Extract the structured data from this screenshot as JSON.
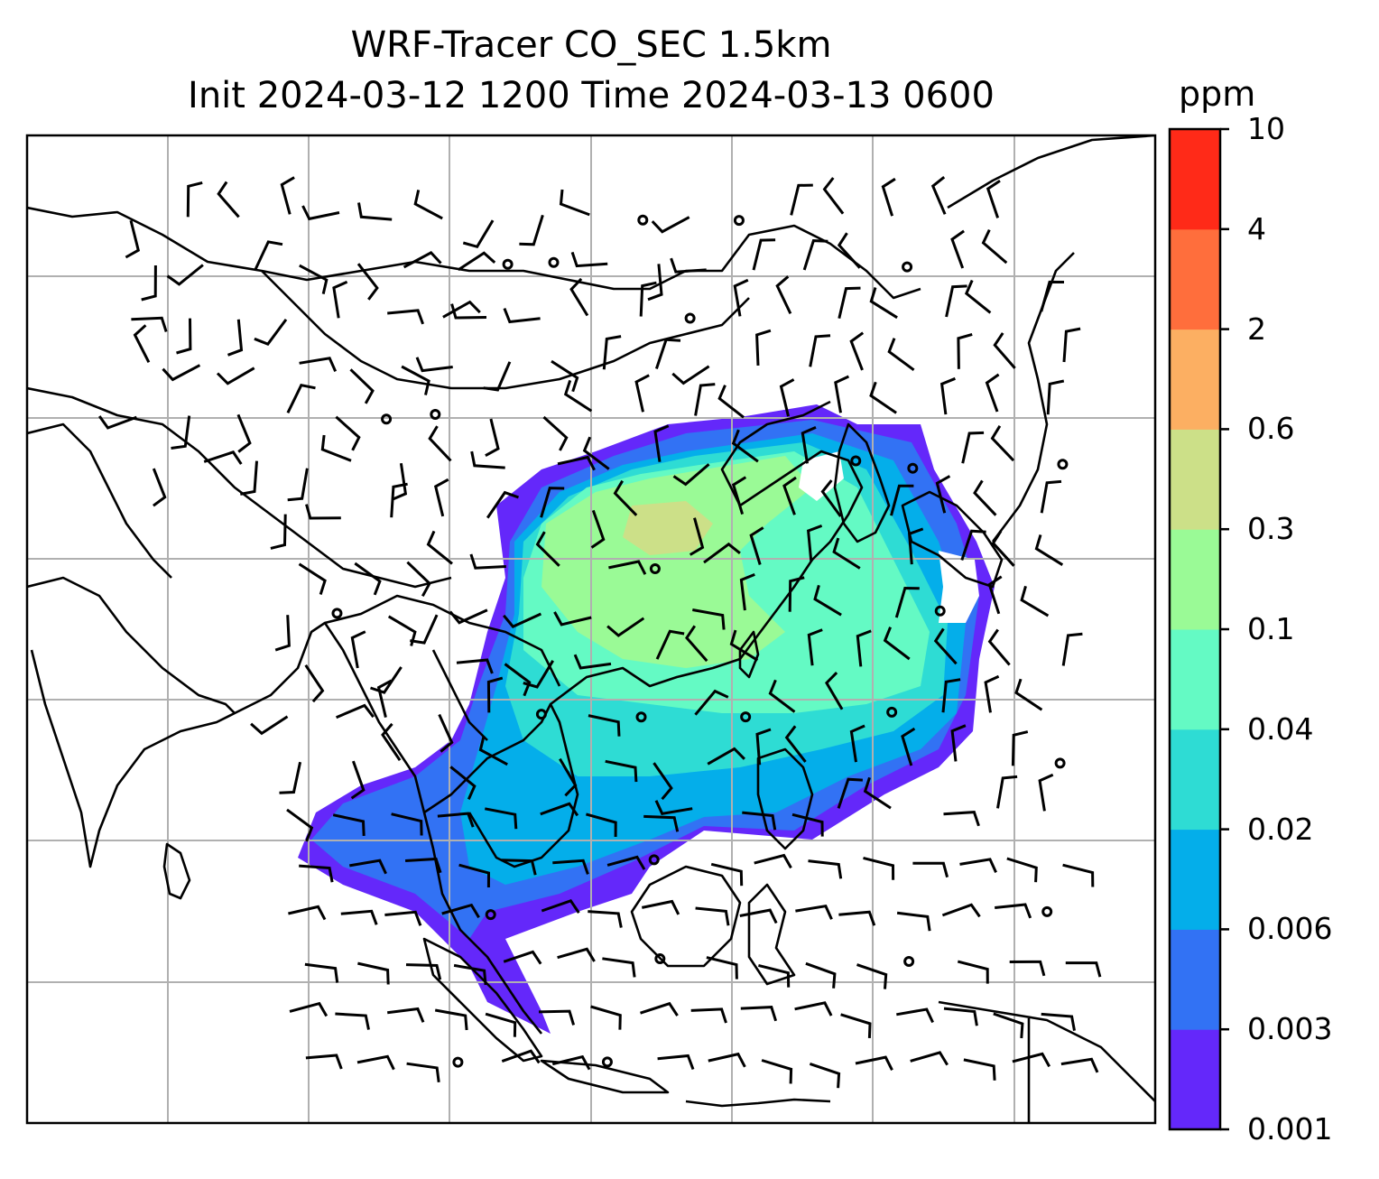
{
  "title": {
    "line1": "WRF-Tracer CO_SEC 1.5km",
    "line2": "Init 2024-03-12 1200 Time 2024-03-13 0600"
  },
  "colorbar": {
    "unit": "ppm",
    "levels": [
      "0.001",
      "0.003",
      "0.006",
      "0.02",
      "0.04",
      "0.1",
      "0.3",
      "0.6",
      "2",
      "4",
      "10"
    ],
    "colors": [
      "#6428fa",
      "#3272f4",
      "#04aeea",
      "#2edcd4",
      "#64fac4",
      "#9afa96",
      "#cce088",
      "#fcaf62",
      "#ff6e3c",
      "#ff2a18"
    ]
  },
  "map": {
    "gridlines": true,
    "coastline_color": "#000000",
    "grid_color": "#b0b0b0",
    "wind_barb_color": "#000000"
  }
}
